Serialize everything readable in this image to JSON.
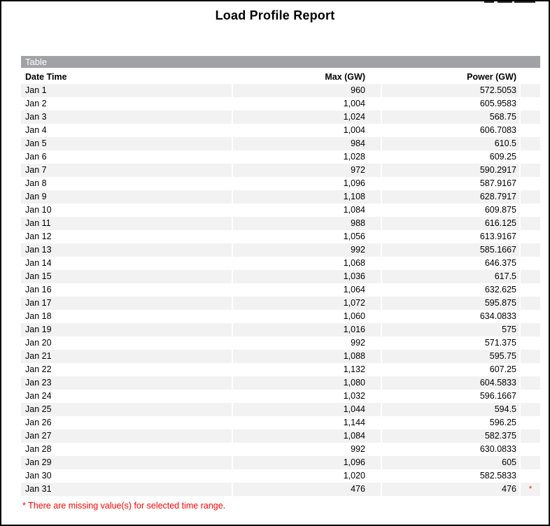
{
  "page": {
    "title": "Load Profile Report"
  },
  "table": {
    "section_label": "Table",
    "columns": [
      "Date Time",
      "Max (GW)",
      "Power (GW)"
    ],
    "rows": [
      {
        "date": "Jan 1",
        "max": "960",
        "power": "572.5053",
        "flag": ""
      },
      {
        "date": "Jan 2",
        "max": "1,004",
        "power": "605.9583",
        "flag": ""
      },
      {
        "date": "Jan 3",
        "max": "1,024",
        "power": "568.75",
        "flag": ""
      },
      {
        "date": "Jan 4",
        "max": "1,004",
        "power": "606.7083",
        "flag": ""
      },
      {
        "date": "Jan 5",
        "max": "984",
        "power": "610.5",
        "flag": ""
      },
      {
        "date": "Jan 6",
        "max": "1,028",
        "power": "609.25",
        "flag": ""
      },
      {
        "date": "Jan 7",
        "max": "972",
        "power": "590.2917",
        "flag": ""
      },
      {
        "date": "Jan 8",
        "max": "1,096",
        "power": "587.9167",
        "flag": ""
      },
      {
        "date": "Jan 9",
        "max": "1,108",
        "power": "628.7917",
        "flag": ""
      },
      {
        "date": "Jan 10",
        "max": "1,084",
        "power": "609.875",
        "flag": ""
      },
      {
        "date": "Jan 11",
        "max": "988",
        "power": "616.125",
        "flag": ""
      },
      {
        "date": "Jan 12",
        "max": "1,056",
        "power": "613.9167",
        "flag": ""
      },
      {
        "date": "Jan 13",
        "max": "992",
        "power": "585.1667",
        "flag": ""
      },
      {
        "date": "Jan 14",
        "max": "1,068",
        "power": "646.375",
        "flag": ""
      },
      {
        "date": "Jan 15",
        "max": "1,036",
        "power": "617.5",
        "flag": ""
      },
      {
        "date": "Jan 16",
        "max": "1,064",
        "power": "632.625",
        "flag": ""
      },
      {
        "date": "Jan 17",
        "max": "1,072",
        "power": "595.875",
        "flag": ""
      },
      {
        "date": "Jan 18",
        "max": "1,060",
        "power": "634.0833",
        "flag": ""
      },
      {
        "date": "Jan 19",
        "max": "1,016",
        "power": "575",
        "flag": ""
      },
      {
        "date": "Jan 20",
        "max": "992",
        "power": "571.375",
        "flag": ""
      },
      {
        "date": "Jan 21",
        "max": "1,088",
        "power": "595.75",
        "flag": ""
      },
      {
        "date": "Jan 22",
        "max": "1,132",
        "power": "607.25",
        "flag": ""
      },
      {
        "date": "Jan 23",
        "max": "1,080",
        "power": "604.5833",
        "flag": ""
      },
      {
        "date": "Jan 24",
        "max": "1,032",
        "power": "596.1667",
        "flag": ""
      },
      {
        "date": "Jan 25",
        "max": "1,044",
        "power": "594.5",
        "flag": ""
      },
      {
        "date": "Jan 26",
        "max": "1,144",
        "power": "596.25",
        "flag": ""
      },
      {
        "date": "Jan 27",
        "max": "1,084",
        "power": "582.375",
        "flag": ""
      },
      {
        "date": "Jan 28",
        "max": "992",
        "power": "630.0833",
        "flag": ""
      },
      {
        "date": "Jan 29",
        "max": "1,096",
        "power": "605",
        "flag": ""
      },
      {
        "date": "Jan 30",
        "max": "1,020",
        "power": "582.5833",
        "flag": ""
      },
      {
        "date": "Jan 31",
        "max": "476",
        "power": "476",
        "flag": "*"
      }
    ],
    "footnote": "* There are missing value(s) for selected time range."
  },
  "colors": {
    "section_bar_bg": "#a0a2a5",
    "section_bar_text": "#ffffff",
    "row_stripe": "#f2f2f2",
    "alert_red": "#ff0000",
    "page_border": "#000000"
  }
}
